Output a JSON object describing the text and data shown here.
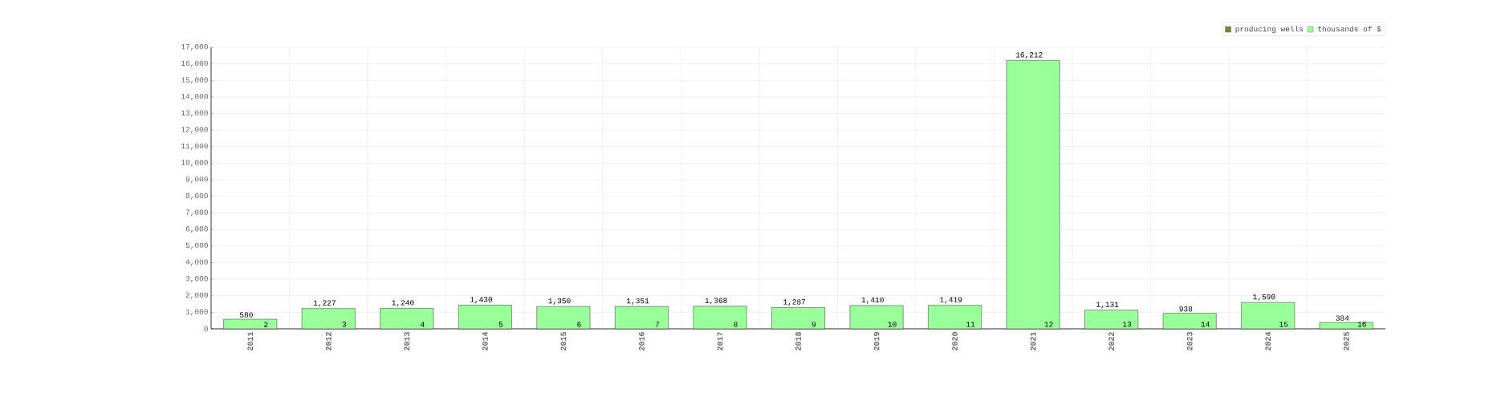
{
  "chart_data": {
    "type": "bar",
    "categories": [
      "2011",
      "2012",
      "2013",
      "2014",
      "2015",
      "2016",
      "2017",
      "2018",
      "2019",
      "2020",
      "2021",
      "2022",
      "2023",
      "2024",
      "2025"
    ],
    "series": [
      {
        "name": "producing wells",
        "color": "#6b8a3a",
        "values": [
          2,
          3,
          4,
          5,
          6,
          7,
          8,
          9,
          10,
          11,
          12,
          13,
          14,
          15,
          16
        ],
        "value_labels": [
          "2",
          "3",
          "4",
          "5",
          "6",
          "7",
          "8",
          "9",
          "10",
          "11",
          "12",
          "13",
          "14",
          "15",
          "16"
        ]
      },
      {
        "name": "thousands of $",
        "color": "#99ff99",
        "values": [
          580,
          1227,
          1240,
          1430,
          1350,
          1351,
          1368,
          1287,
          1410,
          1419,
          16212,
          1131,
          938,
          1590,
          384
        ],
        "value_labels": [
          "580",
          "1,227",
          "1,240",
          "1,430",
          "1,350",
          "1,351",
          "1,368",
          "1,287",
          "1,410",
          "1,419",
          "16,212",
          "1,131",
          "938",
          "1,590",
          "384"
        ]
      }
    ],
    "ylim": [
      0,
      17000
    ],
    "yticks": [
      0,
      {
        "value": 1000,
        "label": "1,000"
      },
      {
        "value": 2000,
        "label": "2,000"
      },
      {
        "value": 3000,
        "label": "3,000"
      },
      {
        "value": 4000,
        "label": "4,000"
      },
      {
        "value": 5000,
        "label": "5,000"
      },
      {
        "value": 6000,
        "label": "6,000"
      },
      {
        "value": 7000,
        "label": "7,000"
      },
      {
        "value": 8000,
        "label": "8,000"
      },
      {
        "value": 9000,
        "label": "9,000"
      },
      {
        "value": 10000,
        "label": "10,000"
      },
      {
        "value": 11000,
        "label": "11,000"
      },
      {
        "value": 12000,
        "label": "12,000"
      },
      {
        "value": 13000,
        "label": "13,000"
      },
      {
        "value": 14000,
        "label": "14,000"
      },
      {
        "value": 15000,
        "label": "15,000"
      },
      {
        "value": 16000,
        "label": "16,000"
      },
      {
        "value": 17000,
        "label": "17,000"
      }
    ],
    "grid": true,
    "legend": "top right"
  }
}
